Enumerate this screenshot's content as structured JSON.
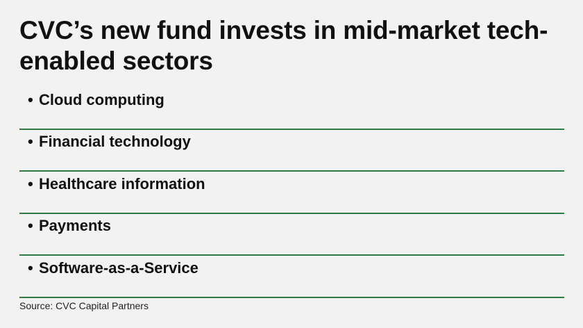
{
  "title": "CVC’s new fund invests in mid-market tech-enabled sectors",
  "sectors": [
    "Cloud computing",
    "Financial technology",
    "Healthcare information",
    "Payments",
    "Software-as-a-Service"
  ],
  "bullet": "•",
  "source": "Source: CVC Capital Partners",
  "colors": {
    "background": "#f1f2f1",
    "rule": "#2f7a45",
    "text": "#111111"
  }
}
